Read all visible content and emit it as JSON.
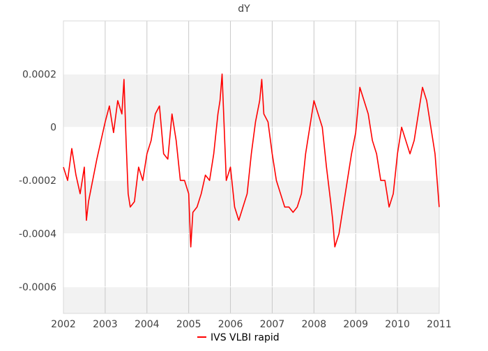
{
  "chart_data": {
    "type": "line",
    "title": "dY",
    "xlabel": "",
    "ylabel": "",
    "xlim": [
      2002,
      2011
    ],
    "ylim": [
      -0.0007,
      0.0004
    ],
    "x_ticks": [
      "2002",
      "2003",
      "2004",
      "2005",
      "2006",
      "2007",
      "2008",
      "2009",
      "2010",
      "2011"
    ],
    "y_ticks": [
      "0.0002",
      "0",
      "-0.0002",
      "-0.0004",
      "-0.0006"
    ],
    "y_tick_values": [
      0.0002,
      0,
      -0.0002,
      -0.0004,
      -0.0006
    ],
    "bands": [
      [
        0.0,
        0.0002
      ],
      [
        -0.0004,
        -0.0002
      ],
      [
        -0.0007,
        -0.0006
      ]
    ],
    "grid": true,
    "legend": "bottom-center",
    "series": [
      {
        "name": "IVS VLBI rapid",
        "color": "#ff0000",
        "x": [
          2002.0,
          2002.1,
          2002.2,
          2002.3,
          2002.4,
          2002.5,
          2002.55,
          2002.6,
          2002.7,
          2002.8,
          2002.9,
          2003.0,
          2003.1,
          2003.2,
          2003.3,
          2003.4,
          2003.45,
          2003.5,
          2003.55,
          2003.6,
          2003.7,
          2003.8,
          2003.9,
          2004.0,
          2004.1,
          2004.2,
          2004.3,
          2004.4,
          2004.5,
          2004.6,
          2004.7,
          2004.8,
          2004.9,
          2005.0,
          2005.05,
          2005.1,
          2005.2,
          2005.3,
          2005.4,
          2005.5,
          2005.6,
          2005.7,
          2005.75,
          2005.8,
          2005.9,
          2006.0,
          2006.1,
          2006.2,
          2006.3,
          2006.4,
          2006.5,
          2006.6,
          2006.7,
          2006.75,
          2006.8,
          2006.9,
          2007.0,
          2007.1,
          2007.2,
          2007.3,
          2007.4,
          2007.5,
          2007.6,
          2007.7,
          2007.8,
          2007.9,
          2008.0,
          2008.1,
          2008.2,
          2008.3,
          2008.4,
          2008.45,
          2008.5,
          2008.6,
          2008.7,
          2008.8,
          2008.9,
          2009.0,
          2009.1,
          2009.2,
          2009.3,
          2009.4,
          2009.5,
          2009.6,
          2009.7,
          2009.8,
          2009.9,
          2010.0,
          2010.1,
          2010.2,
          2010.3,
          2010.4,
          2010.5,
          2010.6,
          2010.7,
          2010.8,
          2010.9,
          2011.0
        ],
        "y": [
          -0.00015,
          -0.0002,
          -8e-05,
          -0.00018,
          -0.00025,
          -0.00015,
          -0.00035,
          -0.00028,
          -0.0002,
          -0.00012,
          -5e-05,
          2e-05,
          8e-05,
          -2e-05,
          0.0001,
          5e-05,
          0.00018,
          -5e-05,
          -0.00025,
          -0.0003,
          -0.00028,
          -0.00015,
          -0.0002,
          -0.0001,
          -5e-05,
          5e-05,
          8e-05,
          -0.0001,
          -0.00012,
          5e-05,
          -5e-05,
          -0.0002,
          -0.0002,
          -0.00025,
          -0.00045,
          -0.00032,
          -0.0003,
          -0.00025,
          -0.00018,
          -0.0002,
          -0.0001,
          5e-05,
          0.0001,
          0.0002,
          -0.0002,
          -0.00015,
          -0.0003,
          -0.00035,
          -0.0003,
          -0.00025,
          -0.0001,
          2e-05,
          0.0001,
          0.00018,
          5e-05,
          2e-05,
          -0.0001,
          -0.0002,
          -0.00025,
          -0.0003,
          -0.0003,
          -0.00032,
          -0.0003,
          -0.00025,
          -0.0001,
          0.0,
          0.0001,
          5e-05,
          0.0,
          -0.00015,
          -0.00028,
          -0.00035,
          -0.00045,
          -0.0004,
          -0.0003,
          -0.0002,
          -0.0001,
          -2e-05,
          0.00015,
          0.0001,
          5e-05,
          -5e-05,
          -0.0001,
          -0.0002,
          -0.0002,
          -0.0003,
          -0.00025,
          -0.0001,
          0.0,
          -5e-05,
          -0.0001,
          -5e-05,
          5e-05,
          0.00015,
          0.0001,
          0.0,
          -0.0001,
          -0.0003
        ]
      }
    ]
  }
}
